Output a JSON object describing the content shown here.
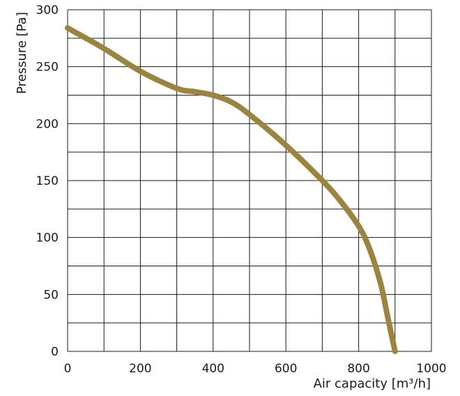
{
  "chart_data": {
    "type": "line",
    "xlabel": "Air capacity [m³/h]",
    "ylabel": "Pressure [Pa]",
    "xlim": [
      0,
      1000
    ],
    "ylim": [
      0,
      300
    ],
    "x_ticks": [
      0,
      200,
      400,
      600,
      800,
      1000
    ],
    "y_ticks": [
      0,
      50,
      100,
      150,
      200,
      250,
      300
    ],
    "x_tick_labels": [
      "0",
      "200",
      "400",
      "600",
      "800",
      "1000"
    ],
    "y_tick_labels": [
      "0",
      "50",
      "100",
      "150",
      "200",
      "250",
      "300"
    ],
    "grid": true,
    "grid_x_step": 100,
    "grid_y_step": 25,
    "series": [
      {
        "color": "#9a8540",
        "x": [
          0,
          100,
          200,
          300,
          350,
          400,
          450,
          500,
          600,
          700,
          750,
          800,
          830,
          860,
          880,
          900
        ],
        "y": [
          284,
          266,
          246,
          231,
          228,
          225,
          219,
          208,
          181,
          150,
          132,
          110,
          90,
          60,
          30,
          0
        ]
      }
    ]
  }
}
